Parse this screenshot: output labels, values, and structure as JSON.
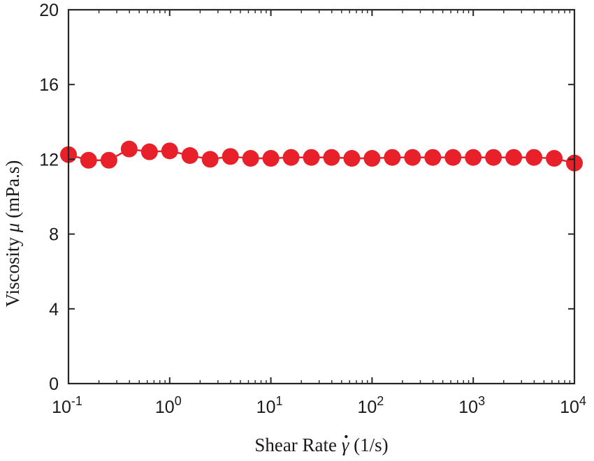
{
  "chart_data": {
    "type": "line",
    "xscale": "log",
    "xlim": [
      0.1,
      10000
    ],
    "ylim": [
      0,
      20
    ],
    "x_ticks": [
      {
        "base": "10",
        "exp": "-1",
        "value": 0.1
      },
      {
        "base": "10",
        "exp": "0",
        "value": 1
      },
      {
        "base": "10",
        "exp": "1",
        "value": 10
      },
      {
        "base": "10",
        "exp": "2",
        "value": 100
      },
      {
        "base": "10",
        "exp": "3",
        "value": 1000
      },
      {
        "base": "10",
        "exp": "4",
        "value": 10000
      }
    ],
    "y_ticks": [
      "0",
      "4",
      "8",
      "12",
      "16",
      "20"
    ],
    "xlabel": {
      "prefix": "Shear Rate ",
      "symbol": "γ",
      "suffix": " (1/s)"
    },
    "ylabel": {
      "prefix": "Viscosity ",
      "symbol": "μ",
      "suffix": " (mPa.s)"
    },
    "grid": false,
    "marker_color": "#e8202a",
    "series": [
      {
        "x": [
          0.1,
          0.158,
          0.251,
          0.398,
          0.631,
          1,
          1.585,
          2.512,
          3.981,
          6.31,
          10,
          15.85,
          25.12,
          39.81,
          63.1,
          100,
          158.5,
          251.2,
          398.1,
          631,
          1000,
          1585,
          2512,
          3981,
          6310,
          10000
        ],
        "y": [
          12.25,
          11.95,
          11.95,
          12.55,
          12.4,
          12.45,
          12.2,
          12.0,
          12.15,
          12.05,
          12.05,
          12.1,
          12.1,
          12.1,
          12.05,
          12.05,
          12.1,
          12.1,
          12.1,
          12.1,
          12.1,
          12.1,
          12.1,
          12.1,
          12.05,
          11.8
        ]
      }
    ]
  }
}
